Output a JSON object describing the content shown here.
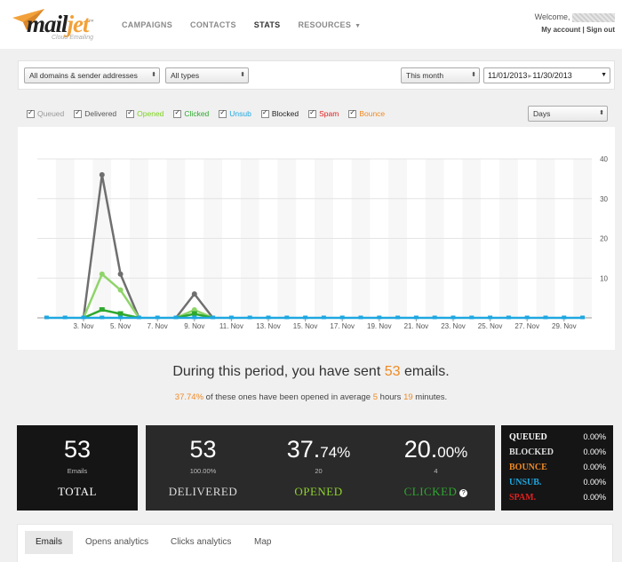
{
  "header": {
    "logo_text_mail": "mail",
    "logo_text_jet": "jet",
    "logo_tm": "™",
    "logo_tagline": "Cloud Emailing",
    "nav": [
      {
        "label": "CAMPAIGNS",
        "active": false
      },
      {
        "label": "CONTACTS",
        "active": false
      },
      {
        "label": "STATS",
        "active": true
      },
      {
        "label": "RESOURCES",
        "active": false
      }
    ],
    "welcome": "Welcome,",
    "my_account": "My account",
    "sep": "|",
    "sign_out": "Sign out"
  },
  "filters": {
    "domain": "All domains & sender addresses",
    "type": "All types",
    "period": "This month",
    "date_from": "11/01/2013",
    "date_to": "11/30/2013",
    "granularity": "Days"
  },
  "legend": [
    {
      "label": "Queued",
      "color": "#999999"
    },
    {
      "label": "Delivered",
      "color": "#555555"
    },
    {
      "label": "Opened",
      "color": "#7ed321"
    },
    {
      "label": "Clicked",
      "color": "#2ea82e"
    },
    {
      "label": "Unsub",
      "color": "#1ea7e1"
    },
    {
      "label": "Blocked",
      "color": "#222222"
    },
    {
      "label": "Spam",
      "color": "#e02020"
    },
    {
      "label": "Bounce",
      "color": "#f08a24"
    }
  ],
  "chart_data": {
    "type": "line",
    "x": [
      1,
      2,
      3,
      4,
      5,
      6,
      7,
      8,
      9,
      10,
      11,
      12,
      13,
      14,
      15,
      16,
      17,
      18,
      19,
      20,
      21,
      22,
      23,
      24,
      25,
      26,
      27,
      28,
      29,
      30
    ],
    "x_tick_labels": [
      "3. Nov",
      "5. Nov",
      "7. Nov",
      "9. Nov",
      "11. Nov",
      "13. Nov",
      "15. Nov",
      "17. Nov",
      "19. Nov",
      "21. Nov",
      "23. Nov",
      "25. Nov",
      "27. Nov",
      "29. Nov"
    ],
    "x_ticks": [
      3,
      5,
      7,
      9,
      11,
      13,
      15,
      17,
      19,
      21,
      23,
      25,
      27,
      29
    ],
    "y_ticks": [
      10,
      20,
      30,
      40
    ],
    "ylim": [
      0,
      40
    ],
    "series": [
      {
        "name": "Delivered",
        "color": "#6f6f6f",
        "values": [
          0,
          0,
          0,
          36,
          11,
          0,
          0,
          0,
          6,
          0,
          0,
          0,
          0,
          0,
          0,
          0,
          0,
          0,
          0,
          0,
          0,
          0,
          0,
          0,
          0,
          0,
          0,
          0,
          0,
          0
        ]
      },
      {
        "name": "Opened",
        "color": "#8fd46a",
        "values": [
          0,
          0,
          0,
          11,
          7,
          0,
          0,
          0,
          2,
          0,
          0,
          0,
          0,
          0,
          0,
          0,
          0,
          0,
          0,
          0,
          0,
          0,
          0,
          0,
          0,
          0,
          0,
          0,
          0,
          0
        ]
      },
      {
        "name": "Clicked",
        "color": "#2ea82e",
        "values": [
          0,
          0,
          0,
          2,
          1,
          0,
          0,
          0,
          1,
          0,
          0,
          0,
          0,
          0,
          0,
          0,
          0,
          0,
          0,
          0,
          0,
          0,
          0,
          0,
          0,
          0,
          0,
          0,
          0,
          0
        ]
      },
      {
        "name": "Unsub",
        "color": "#1ea7e1",
        "values": [
          0,
          0,
          0,
          0,
          0,
          0,
          0,
          0,
          0,
          0,
          0,
          0,
          0,
          0,
          0,
          0,
          0,
          0,
          0,
          0,
          0,
          0,
          0,
          0,
          0,
          0,
          0,
          0,
          0,
          0
        ]
      }
    ]
  },
  "summary": {
    "prefix": "During this period, you have sent",
    "sent": "53",
    "suffix": "emails.",
    "open_rate": "37.74%",
    "open_text1": "of these ones have been opened in average",
    "hours": "5",
    "hours_label": "hours",
    "minutes": "19",
    "minutes_label": "minutes."
  },
  "stats": {
    "total": {
      "value": "53",
      "sub": "Emails",
      "label": "TOTAL"
    },
    "delivered": {
      "value": "53",
      "sub": "100.00%",
      "label": "DELIVERED"
    },
    "opened": {
      "value_main": "37.",
      "value_dec": "74%",
      "sub": "20",
      "label": "OPENED"
    },
    "clicked": {
      "value_main": "20.",
      "value_dec": "00%",
      "sub": "4",
      "label": "CLICKED",
      "help": "?"
    },
    "side": [
      {
        "label": "QUEUED",
        "pct": "0.00%",
        "color": "#ffffff"
      },
      {
        "label": "BLOCKED",
        "pct": "0.00%",
        "color": "#dddddd"
      },
      {
        "label": "BOUNCE",
        "pct": "0.00%",
        "color": "#f08a24"
      },
      {
        "label": "UNSUB.",
        "pct": "0.00%",
        "color": "#1ea7e1"
      },
      {
        "label": "SPAM.",
        "pct": "0.00%",
        "color": "#e02020"
      }
    ]
  },
  "tabs": [
    {
      "label": "Emails",
      "active": true
    },
    {
      "label": "Opens analytics",
      "active": false
    },
    {
      "label": "Clicks analytics",
      "active": false
    },
    {
      "label": "Map",
      "active": false
    }
  ]
}
